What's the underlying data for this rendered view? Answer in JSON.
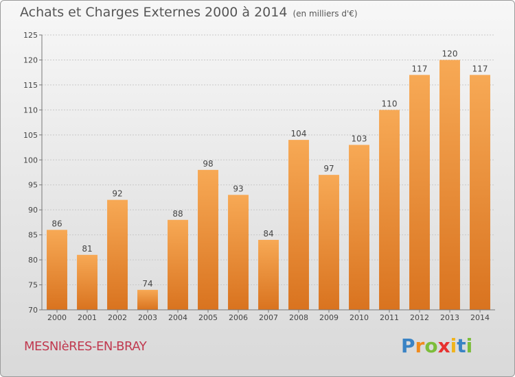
{
  "header": {
    "title": "Achats et Charges Externes 2000 à 2014",
    "subtitle": "(en milliers d'€)"
  },
  "footer": {
    "commune": "MESNIèRES-EN-BRAY",
    "brand_letters": [
      "P",
      "r",
      "o",
      "x",
      "i",
      "t",
      "i"
    ]
  },
  "colors": {
    "bar_light": "#f7a955",
    "bar_dark": "#d9731f",
    "grid": "#c8c8c8",
    "commune_text": "#c0394f"
  },
  "chart_data": {
    "type": "bar",
    "title": "Achats et Charges Externes 2000 à 2014",
    "subtitle": "(en milliers d'€)",
    "categories": [
      "2000",
      "2001",
      "2002",
      "2003",
      "2004",
      "2005",
      "2006",
      "2007",
      "2008",
      "2009",
      "2010",
      "2011",
      "2012",
      "2013",
      "2014"
    ],
    "values": [
      86,
      81,
      92,
      74,
      88,
      98,
      93,
      84,
      104,
      97,
      103,
      110,
      117,
      120,
      117
    ],
    "ylim": [
      70,
      125
    ],
    "yticks": [
      70,
      75,
      80,
      85,
      90,
      95,
      100,
      105,
      110,
      115,
      120,
      125
    ],
    "grid": true
  }
}
